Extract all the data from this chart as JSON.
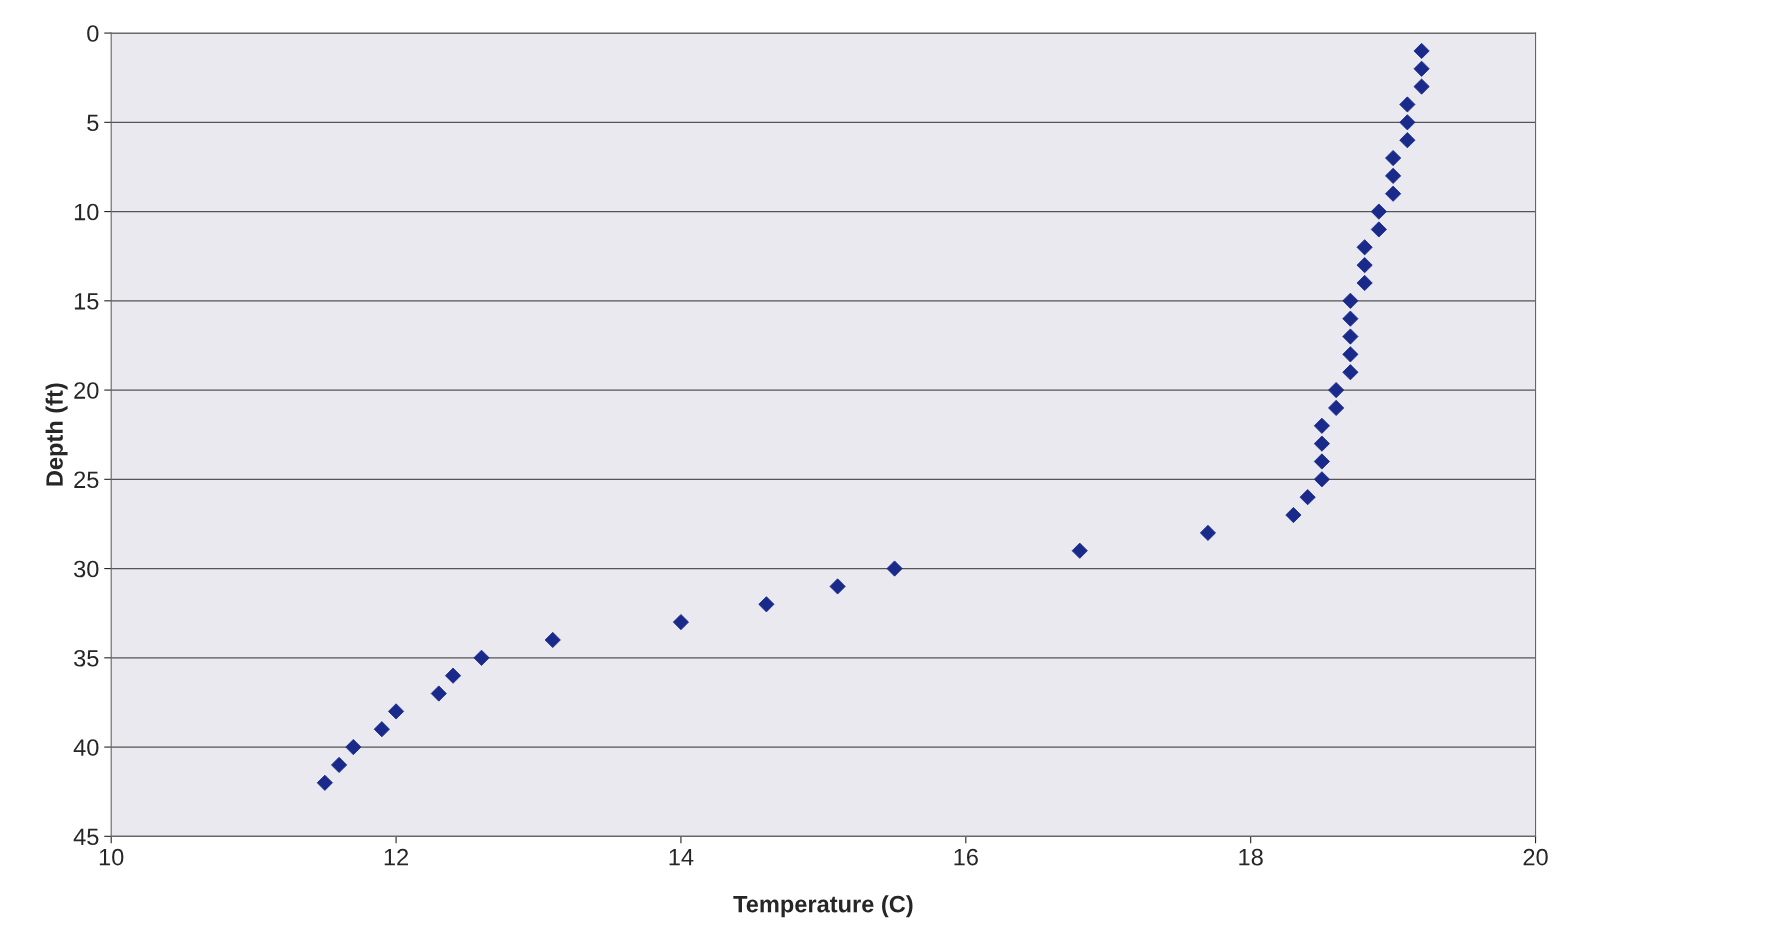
{
  "chart_data": {
    "type": "scatter",
    "xlabel": "Temperature (C)",
    "ylabel": "Depth (ft)",
    "x": [
      19.2,
      19.2,
      19.2,
      19.1,
      19.1,
      19.1,
      19.0,
      19.0,
      19.0,
      18.9,
      18.9,
      18.8,
      18.8,
      18.8,
      18.7,
      18.7,
      18.7,
      18.7,
      18.7,
      18.6,
      18.6,
      18.5,
      18.5,
      18.5,
      18.5,
      18.4,
      18.3,
      17.7,
      16.8,
      15.5,
      15.1,
      14.6,
      14.0,
      13.1,
      12.6,
      12.4,
      12.3,
      12.0,
      11.9,
      11.7,
      11.6,
      11.5
    ],
    "series": [
      {
        "color": "#1a2a8a",
        "values": [
          1,
          2,
          3,
          4,
          5,
          6,
          7,
          8,
          9,
          10,
          11,
          12,
          13,
          14,
          15,
          16,
          17,
          18,
          19,
          20,
          21,
          22,
          23,
          24,
          25,
          26,
          27,
          28,
          29,
          30,
          31,
          32,
          33,
          34,
          35,
          36,
          37,
          38,
          39,
          40,
          41,
          42
        ]
      }
    ],
    "xlim": [
      10,
      20
    ],
    "xticks": [
      10,
      12,
      14,
      16,
      18,
      20
    ],
    "ylim": [
      45,
      0
    ],
    "yticks": [
      0,
      5,
      10,
      15,
      20,
      25,
      30,
      35,
      40,
      45
    ],
    "grid": "y",
    "marker": "diamond",
    "legend": false
  }
}
